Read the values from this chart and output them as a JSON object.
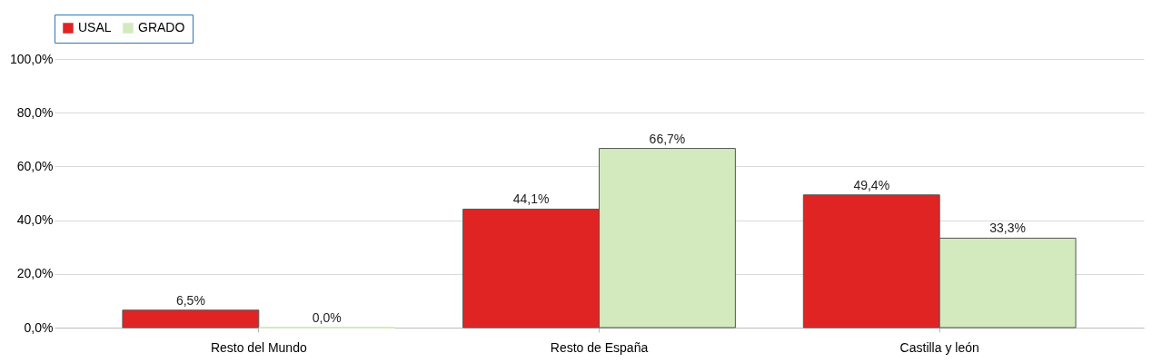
{
  "chart_data": {
    "type": "bar",
    "categories": [
      "Resto del Mundo",
      "Resto de España",
      "Castilla y león"
    ],
    "series": [
      {
        "name": "USAL",
        "color": "#e02424",
        "values": [
          6.5,
          44.1,
          49.4
        ],
        "value_labels": [
          "6,5%",
          "44,1%",
          "49,4%"
        ]
      },
      {
        "name": "GRADO",
        "color": "#d3eabf",
        "values": [
          0.0,
          66.7,
          33.3
        ],
        "value_labels": [
          "0,0%",
          "66,7%",
          "33,3%"
        ]
      }
    ],
    "ylim": [
      0,
      100
    ],
    "yticks": [
      {
        "value": 0,
        "label": "0,0%"
      },
      {
        "value": 20,
        "label": "20,0%"
      },
      {
        "value": 40,
        "label": "40,0%"
      },
      {
        "value": 60,
        "label": "60,0%"
      },
      {
        "value": 80,
        "label": "80,0%"
      },
      {
        "value": 100,
        "label": "100,0%"
      }
    ],
    "grid": "y",
    "legend": "top"
  }
}
